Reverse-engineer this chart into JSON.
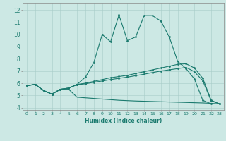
{
  "xlabel": "Humidex (Indice chaleur)",
  "background_color": "#cce8e4",
  "line_color": "#1a7a6e",
  "xlim": [
    -0.5,
    23.5
  ],
  "ylim": [
    3.8,
    12.6
  ],
  "xticks": [
    0,
    1,
    2,
    3,
    4,
    5,
    6,
    7,
    8,
    9,
    10,
    11,
    12,
    13,
    14,
    15,
    16,
    17,
    18,
    19,
    20,
    21,
    22,
    23
  ],
  "yticks": [
    4,
    5,
    6,
    7,
    8,
    9,
    10,
    11,
    12
  ],
  "line1_x": [
    0,
    1,
    2,
    3,
    4,
    5,
    6,
    7,
    8,
    9,
    10,
    11,
    12,
    13,
    14,
    15,
    16,
    17,
    18,
    19,
    20,
    21,
    22
  ],
  "line1_y": [
    5.8,
    5.9,
    5.4,
    5.1,
    5.5,
    5.6,
    5.9,
    6.5,
    7.7,
    10.0,
    9.4,
    11.6,
    9.5,
    9.8,
    11.55,
    11.55,
    11.1,
    9.8,
    7.8,
    7.2,
    6.35,
    4.6,
    4.3
  ],
  "line2_x": [
    0,
    1,
    2,
    3,
    4,
    5,
    6,
    7,
    8,
    9,
    10,
    11,
    12,
    13,
    14,
    15,
    16,
    17,
    18,
    19,
    20,
    21,
    22,
    23
  ],
  "line2_y": [
    5.8,
    5.9,
    5.4,
    5.1,
    5.5,
    5.6,
    5.9,
    6.0,
    6.15,
    6.3,
    6.45,
    6.55,
    6.65,
    6.8,
    6.95,
    7.1,
    7.25,
    7.4,
    7.55,
    7.6,
    7.25,
    6.4,
    4.6,
    4.3
  ],
  "line3_x": [
    0,
    1,
    2,
    3,
    4,
    5,
    6,
    7,
    8,
    9,
    10,
    11,
    12,
    13,
    14,
    15,
    16,
    17,
    18,
    19,
    20,
    21,
    22,
    23
  ],
  "line3_y": [
    5.8,
    5.9,
    5.4,
    5.1,
    5.5,
    5.6,
    5.88,
    5.95,
    6.08,
    6.18,
    6.3,
    6.4,
    6.5,
    6.62,
    6.74,
    6.88,
    7.0,
    7.1,
    7.2,
    7.3,
    6.95,
    6.2,
    4.55,
    4.3
  ],
  "line4_x": [
    0,
    1,
    2,
    3,
    4,
    5,
    6,
    7,
    8,
    9,
    10,
    11,
    12,
    13,
    14,
    15,
    16,
    17,
    18,
    19,
    20,
    21,
    22,
    23
  ],
  "line4_y": [
    5.8,
    5.9,
    5.4,
    5.1,
    5.5,
    5.5,
    4.85,
    4.8,
    4.75,
    4.7,
    4.65,
    4.6,
    4.57,
    4.54,
    4.52,
    4.5,
    4.48,
    4.46,
    4.44,
    4.42,
    4.4,
    4.38,
    4.35,
    4.3
  ]
}
